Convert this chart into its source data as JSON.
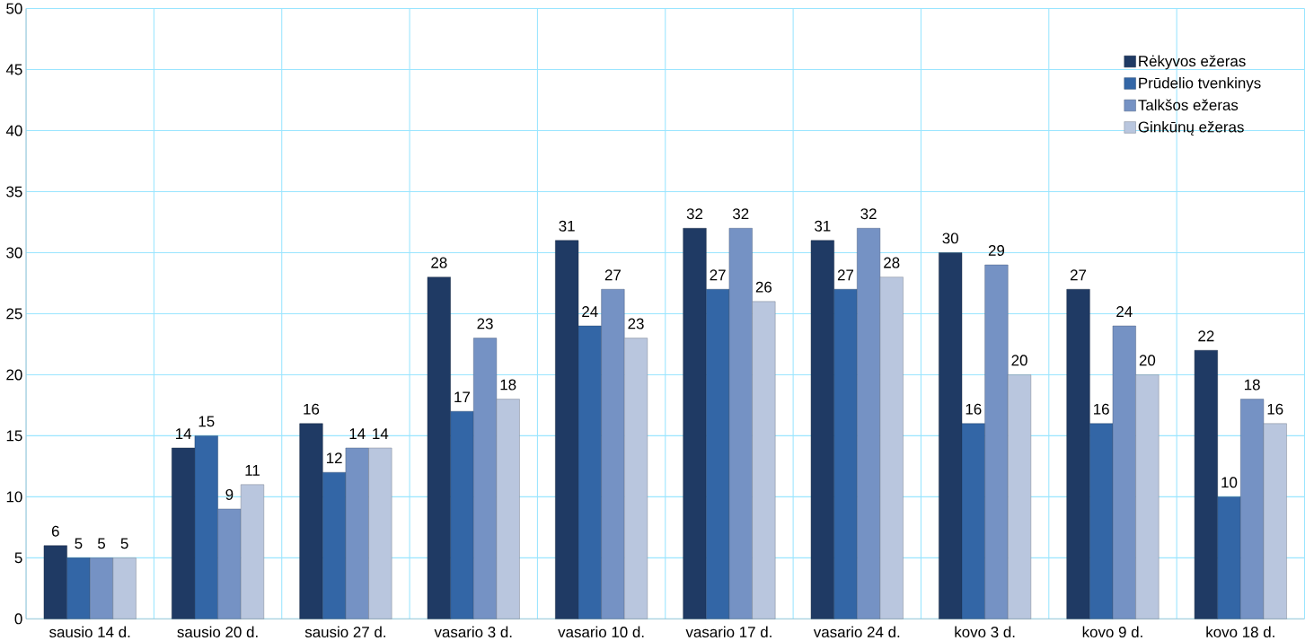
{
  "chart_data": {
    "type": "bar",
    "categories": [
      "sausio 14 d.",
      "sausio 20 d.",
      "sausio 27 d.",
      "vasario 3 d.",
      "vasario 10 d.",
      "vasario 17 d.",
      "vasario 24 d.",
      "kovo 3 d.",
      "kovo 9 d.",
      "kovo 18 d."
    ],
    "series": [
      {
        "name": "Rėkyvos ežeras",
        "color": "#1f3a64",
        "values": [
          6,
          14,
          16,
          28,
          31,
          32,
          31,
          30,
          27,
          22
        ]
      },
      {
        "name": "Prūdelio tvenkinys",
        "color": "#3366a6",
        "values": [
          5,
          15,
          12,
          17,
          24,
          27,
          27,
          16,
          16,
          10
        ]
      },
      {
        "name": "Talkšos ežeras",
        "color": "#7592c4",
        "values": [
          5,
          9,
          14,
          23,
          27,
          32,
          32,
          29,
          24,
          18
        ]
      },
      {
        "name": "Ginkūnų ežeras",
        "color": "#b9c6de",
        "values": [
          5,
          11,
          14,
          18,
          23,
          26,
          28,
          20,
          20,
          16
        ]
      }
    ],
    "ylim": [
      0,
      50
    ],
    "yticks": [
      0,
      5,
      10,
      15,
      20,
      25,
      30,
      35,
      40,
      45,
      50
    ],
    "grid": true,
    "legend": "top right",
    "data_labels": true
  }
}
